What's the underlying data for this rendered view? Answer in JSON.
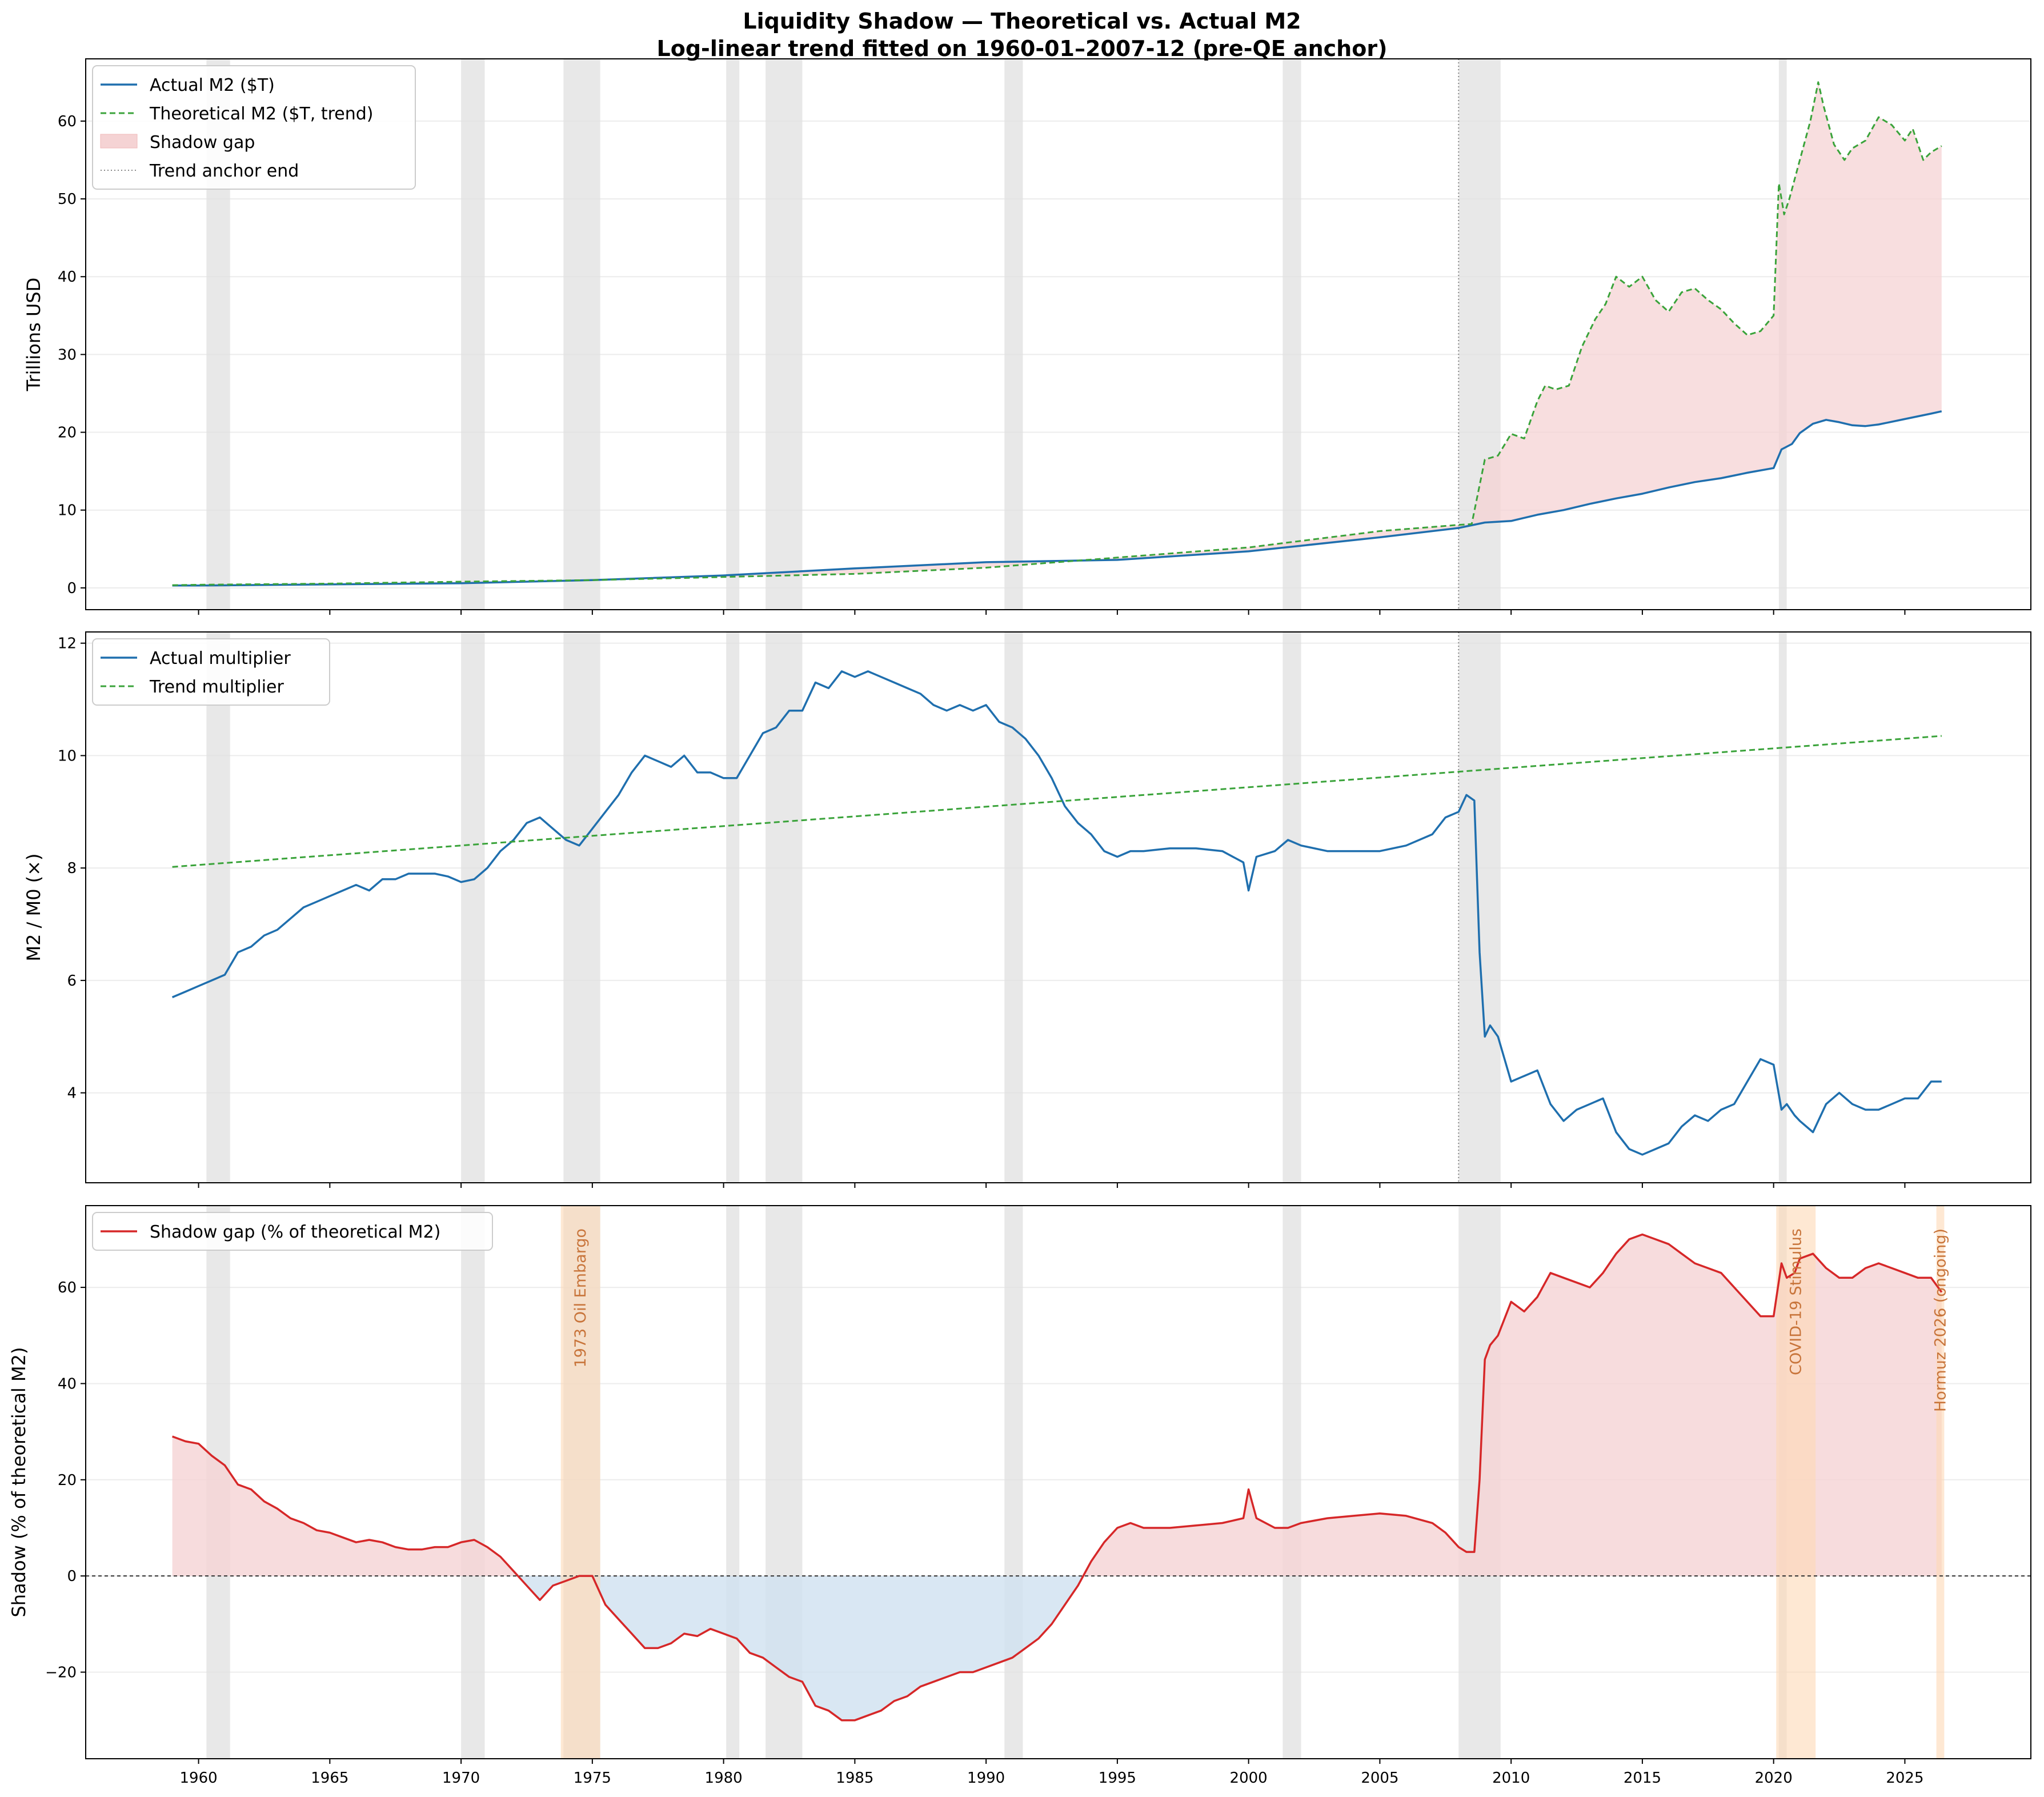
{
  "figure": {
    "title_line1": "Liquidity Shadow — Theoretical vs. Actual M2",
    "title_line2": "Log-linear trend fitted on 1960-01–2007-12  (pre-QE anchor)"
  },
  "colors": {
    "actual": "#1f6fae",
    "trend": "#3aa33a",
    "gap_line": "#d62728",
    "gap_pos_fill": "#f5d3d4",
    "gap_neg_fill": "#cfe1f0",
    "recession": "#e0e0e0",
    "event": "#fdd9b5"
  },
  "x_ticks": [
    1960,
    1965,
    1970,
    1975,
    1980,
    1985,
    1990,
    1995,
    2000,
    2005,
    2010,
    2015,
    2020,
    2025
  ],
  "x_range": [
    1955.7,
    2029.8
  ],
  "recessions": [
    [
      1960.3,
      1961.2
    ],
    [
      1970.0,
      1970.9
    ],
    [
      1973.9,
      1975.3
    ],
    [
      1980.1,
      1980.6
    ],
    [
      1981.6,
      1983.0
    ],
    [
      1990.7,
      1991.4
    ],
    [
      2001.3,
      2002.0
    ],
    [
      2008.0,
      2009.6
    ],
    [
      2020.2,
      2020.5
    ]
  ],
  "anchor_end": 2008.0,
  "events": [
    {
      "label": "1973 Oil Embargo",
      "start": 1973.8,
      "end": 1975.3
    },
    {
      "label": "COVID-19 Stimulus",
      "start": 2020.1,
      "end": 2021.6
    },
    {
      "label": "Hormuz 2026 (ongoing)",
      "start": 2026.2,
      "end": 2026.5
    }
  ],
  "chart_data": [
    {
      "type": "line",
      "ylabel": "Trillions USD",
      "ylim": [
        -2.8,
        68
      ],
      "y_ticks": [
        0,
        10,
        20,
        30,
        40,
        50,
        60
      ],
      "grid": "horizontal",
      "legend_position": "top-left",
      "legend": [
        "Actual M2 ($T)",
        "Theoretical M2 ($T, trend)",
        "Shadow gap",
        "Trend anchor end"
      ],
      "series": [
        {
          "name": "Actual M2 ($T)",
          "x": [
            1959.0,
            1960,
            1965,
            1970,
            1975,
            1980,
            1985,
            1990,
            1995,
            2000,
            2005,
            2008,
            2009,
            2010,
            2011,
            2012,
            2013,
            2014,
            2015,
            2016,
            2017,
            2018,
            2019,
            2020.0,
            2020.3,
            2020.7,
            2021,
            2021.5,
            2022,
            2022.5,
            2023,
            2023.5,
            2024,
            2025,
            2026.0,
            2026.4
          ],
          "values": [
            0.3,
            0.3,
            0.45,
            0.6,
            1.0,
            1.6,
            2.5,
            3.3,
            3.6,
            4.7,
            6.5,
            7.7,
            8.4,
            8.6,
            9.4,
            10.0,
            10.8,
            11.5,
            12.1,
            12.9,
            13.6,
            14.1,
            14.8,
            15.4,
            17.8,
            18.5,
            19.9,
            21.1,
            21.6,
            21.3,
            20.9,
            20.8,
            21.0,
            21.7,
            22.4,
            22.7
          ]
        },
        {
          "name": "Theoretical M2 ($T, trend)",
          "x": [
            1959.0,
            1960,
            1965,
            1970,
            1975,
            1980,
            1985,
            1990,
            1995,
            2000,
            2005,
            2008.0,
            2008.5,
            2009.0,
            2009.5,
            2010.0,
            2010.5,
            2011.0,
            2011.3,
            2011.7,
            2012.2,
            2012.7,
            2013.2,
            2013.6,
            2014.0,
            2014.5,
            2015.0,
            2015.5,
            2016.0,
            2016.5,
            2017.0,
            2017.5,
            2018.0,
            2018.5,
            2019.0,
            2019.5,
            2020.0,
            2020.2,
            2020.4,
            2020.6,
            2021.0,
            2021.4,
            2021.7,
            2021.9,
            2022.3,
            2022.7,
            2023.0,
            2023.5,
            2024.0,
            2024.5,
            2025.0,
            2025.3,
            2025.7,
            2026.0,
            2026.4
          ],
          "values": [
            0.35,
            0.4,
            0.55,
            0.8,
            1.0,
            1.4,
            1.8,
            2.6,
            3.9,
            5.2,
            7.3,
            8.1,
            8.2,
            16.5,
            17.0,
            19.8,
            19.2,
            24.0,
            26.0,
            25.5,
            26.0,
            31.0,
            34.5,
            36.5,
            40.0,
            38.7,
            40.0,
            37.0,
            35.5,
            38.0,
            38.5,
            37.0,
            35.8,
            34.0,
            32.5,
            33.0,
            35.0,
            52.0,
            48.0,
            50.0,
            55.0,
            60.0,
            65.0,
            62.0,
            57.0,
            55.0,
            56.5,
            57.5,
            60.5,
            59.5,
            57.5,
            59.0,
            55.0,
            56.0,
            56.8
          ]
        }
      ]
    },
    {
      "type": "line",
      "ylabel": "M2 / M0  (×)",
      "ylim": [
        2.4,
        12.2
      ],
      "y_ticks": [
        4,
        6,
        8,
        10,
        12
      ],
      "grid": "horizontal",
      "legend_position": "top-left",
      "legend": [
        "Actual multiplier",
        "Trend multiplier"
      ],
      "series": [
        {
          "name": "Actual multiplier",
          "x": [
            1959.0,
            1959.5,
            1960.0,
            1960.5,
            1961.0,
            1961.5,
            1962.0,
            1962.5,
            1963.0,
            1963.5,
            1964.0,
            1964.5,
            1965.0,
            1965.5,
            1966.0,
            1966.5,
            1967.0,
            1967.5,
            1968.0,
            1968.5,
            1969.0,
            1969.5,
            1970.0,
            1970.5,
            1971.0,
            1971.5,
            1972.0,
            1972.5,
            1973.0,
            1973.5,
            1974.0,
            1974.5,
            1975.0,
            1975.5,
            1976.0,
            1976.5,
            1977.0,
            1977.5,
            1978.0,
            1978.5,
            1979.0,
            1979.5,
            1980.0,
            1980.5,
            1981.0,
            1981.5,
            1982.0,
            1982.5,
            1983.0,
            1983.5,
            1984.0,
            1984.5,
            1985.0,
            1985.5,
            1986.0,
            1986.5,
            1987.0,
            1987.5,
            1988.0,
            1988.5,
            1989.0,
            1989.5,
            1990.0,
            1990.5,
            1991.0,
            1991.5,
            1992.0,
            1992.5,
            1993.0,
            1993.5,
            1994.0,
            1994.5,
            1995.0,
            1995.5,
            1996.0,
            1997.0,
            1998.0,
            1999.0,
            1999.8,
            2000.0,
            2000.3,
            2001.0,
            2001.5,
            2002.0,
            2003.0,
            2004.0,
            2005.0,
            2006.0,
            2007.0,
            2007.5,
            2008.0,
            2008.3,
            2008.6,
            2008.8,
            2009.0,
            2009.2,
            2009.5,
            2010.0,
            2010.5,
            2011.0,
            2011.5,
            2012.0,
            2012.5,
            2013.0,
            2013.5,
            2014.0,
            2014.5,
            2015.0,
            2015.5,
            2016.0,
            2016.5,
            2017.0,
            2017.5,
            2018.0,
            2018.5,
            2019.0,
            2019.5,
            2020.0,
            2020.3,
            2020.5,
            2020.8,
            2021.0,
            2021.5,
            2022.0,
            2022.5,
            2023.0,
            2023.5,
            2024.0,
            2024.5,
            2025.0,
            2025.5,
            2026.0,
            2026.4
          ],
          "values": [
            5.7,
            5.8,
            5.9,
            6.0,
            6.1,
            6.5,
            6.6,
            6.8,
            6.9,
            7.1,
            7.3,
            7.4,
            7.5,
            7.6,
            7.7,
            7.6,
            7.8,
            7.8,
            7.9,
            7.9,
            7.9,
            7.85,
            7.75,
            7.8,
            8.0,
            8.3,
            8.5,
            8.8,
            8.9,
            8.7,
            8.5,
            8.4,
            8.7,
            9.0,
            9.3,
            9.7,
            10.0,
            9.9,
            9.8,
            10.0,
            9.7,
            9.7,
            9.6,
            9.6,
            10.0,
            10.4,
            10.5,
            10.8,
            10.8,
            11.3,
            11.2,
            11.5,
            11.4,
            11.5,
            11.4,
            11.3,
            11.2,
            11.1,
            10.9,
            10.8,
            10.9,
            10.8,
            10.9,
            10.6,
            10.5,
            10.3,
            10.0,
            9.6,
            9.1,
            8.8,
            8.6,
            8.3,
            8.2,
            8.3,
            8.3,
            8.35,
            8.35,
            8.3,
            8.1,
            7.6,
            8.2,
            8.3,
            8.5,
            8.4,
            8.3,
            8.3,
            8.3,
            8.4,
            8.6,
            8.9,
            9.0,
            9.3,
            9.2,
            6.5,
            5.0,
            5.2,
            5.0,
            4.2,
            4.3,
            4.4,
            3.8,
            3.5,
            3.7,
            3.8,
            3.9,
            3.3,
            3.0,
            2.9,
            3.0,
            3.1,
            3.4,
            3.6,
            3.5,
            3.7,
            3.8,
            4.2,
            4.6,
            4.5,
            3.7,
            3.8,
            3.6,
            3.5,
            3.3,
            3.8,
            4.0,
            3.8,
            3.7,
            3.7,
            3.8,
            3.9,
            3.9,
            4.2,
            4.2
          ]
        },
        {
          "name": "Trend multiplier",
          "x": [
            1959.0,
            2026.4
          ],
          "values": [
            8.02,
            10.35
          ]
        }
      ]
    },
    {
      "type": "area",
      "ylabel": "Shadow (% of theoretical M2)",
      "ylim": [
        -38,
        77
      ],
      "y_ticks": [
        -20,
        0,
        20,
        40,
        60
      ],
      "grid": "horizontal",
      "legend_position": "top-left",
      "legend": [
        "Shadow gap (% of theoretical M2)"
      ],
      "series": [
        {
          "name": "Shadow gap (% of theoretical M2)",
          "x": [
            1959.0,
            1959.5,
            1960.0,
            1960.5,
            1961.0,
            1961.5,
            1962.0,
            1962.5,
            1963.0,
            1963.5,
            1964.0,
            1964.5,
            1965.0,
            1965.5,
            1966.0,
            1966.5,
            1967.0,
            1967.5,
            1968.0,
            1968.5,
            1969.0,
            1969.5,
            1970.0,
            1970.5,
            1971.0,
            1971.5,
            1972.0,
            1972.5,
            1973.0,
            1973.5,
            1974.0,
            1974.5,
            1975.0,
            1975.5,
            1976.0,
            1976.5,
            1977.0,
            1977.5,
            1978.0,
            1978.5,
            1979.0,
            1979.5,
            1980.0,
            1980.5,
            1981.0,
            1981.5,
            1982.0,
            1982.5,
            1983.0,
            1983.5,
            1984.0,
            1984.5,
            1985.0,
            1985.5,
            1986.0,
            1986.5,
            1987.0,
            1987.5,
            1988.0,
            1988.5,
            1989.0,
            1989.5,
            1990.0,
            1990.5,
            1991.0,
            1991.5,
            1992.0,
            1992.5,
            1993.0,
            1993.5,
            1994.0,
            1994.5,
            1995.0,
            1995.5,
            1996.0,
            1997.0,
            1998.0,
            1999.0,
            1999.8,
            2000.0,
            2000.3,
            2001.0,
            2001.5,
            2002.0,
            2003.0,
            2004.0,
            2005.0,
            2006.0,
            2007.0,
            2007.5,
            2008.0,
            2008.3,
            2008.6,
            2008.8,
            2009.0,
            2009.2,
            2009.5,
            2010.0,
            2010.5,
            2011.0,
            2011.5,
            2012.0,
            2012.5,
            2013.0,
            2013.5,
            2014.0,
            2014.5,
            2015.0,
            2015.5,
            2016.0,
            2016.5,
            2017.0,
            2017.5,
            2018.0,
            2018.5,
            2019.0,
            2019.5,
            2020.0,
            2020.3,
            2020.5,
            2020.8,
            2021.0,
            2021.5,
            2022.0,
            2022.5,
            2023.0,
            2023.5,
            2024.0,
            2024.5,
            2025.0,
            2025.5,
            2026.0,
            2026.4
          ],
          "values": [
            29,
            28,
            27.5,
            25,
            23,
            19,
            18,
            15.5,
            14,
            12,
            11,
            9.5,
            9,
            8,
            7,
            7.5,
            7,
            6,
            5.5,
            5.5,
            6,
            6,
            7,
            7.5,
            6,
            4,
            1,
            -2,
            -5,
            -2,
            -1,
            0,
            0,
            -6,
            -9,
            -12,
            -15,
            -15,
            -14,
            -12,
            -12.5,
            -11,
            -12,
            -13,
            -16,
            -17,
            -19,
            -21,
            -22,
            -27,
            -28,
            -30,
            -30,
            -29,
            -28,
            -26,
            -25,
            -23,
            -22,
            -21,
            -20,
            -20,
            -19,
            -18,
            -17,
            -15,
            -13,
            -10,
            -6,
            -2,
            3,
            7,
            10,
            11,
            10,
            10,
            10.5,
            11,
            12,
            18,
            12,
            10,
            10,
            11,
            12,
            12.5,
            13,
            12.5,
            11,
            9,
            6,
            5,
            5,
            20,
            45,
            48,
            50,
            57,
            55,
            58,
            63,
            62,
            61,
            60,
            63,
            67,
            70,
            71,
            70,
            69,
            67,
            65,
            64,
            63,
            60,
            57,
            54,
            54,
            65,
            62,
            63,
            66,
            67,
            64,
            62,
            62,
            64,
            65,
            64,
            63,
            62,
            62,
            59
          ]
        }
      ]
    }
  ]
}
